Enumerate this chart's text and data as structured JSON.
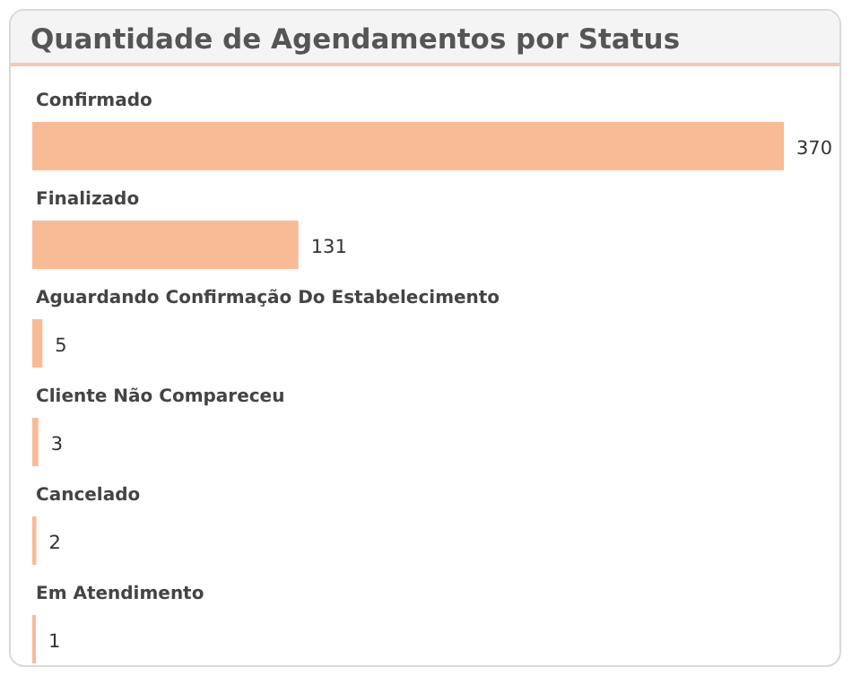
{
  "chart_data": {
    "type": "bar",
    "orientation": "horizontal",
    "title": "Quantidade de Agendamentos por Status",
    "categories": [
      "Confirmado",
      "Finalizado",
      "Aguardando Confirmação Do Estabelecimento",
      "Cliente Não Compareceu",
      "Cancelado",
      "Em Atendimento"
    ],
    "values": [
      370,
      131,
      5,
      3,
      2,
      1
    ],
    "color": "#f8bb96",
    "data_labels": true
  }
}
